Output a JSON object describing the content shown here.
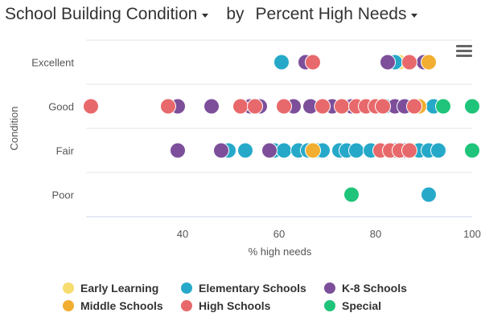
{
  "header": {
    "y_selector": "School Building Condition",
    "by_label": "by",
    "x_selector": "Percent High Needs"
  },
  "legend": [
    {
      "name": "Early Learning",
      "color": "#f7dc6f"
    },
    {
      "name": "Elementary Schools",
      "color": "#26a9c9"
    },
    {
      "name": "K-8 Schools",
      "color": "#7d4f9b"
    },
    {
      "name": "Middle Schools",
      "color": "#f2ae30"
    },
    {
      "name": "High Schools",
      "color": "#e8696b"
    },
    {
      "name": "Special",
      "color": "#1fc47a"
    }
  ],
  "chart_data": {
    "type": "scatter",
    "title": "",
    "xlabel": "% high needs",
    "ylabel": "Condition",
    "xlim": [
      20,
      100
    ],
    "x_ticks": [
      40,
      60,
      80,
      100
    ],
    "categories": [
      "Excellent",
      "Good",
      "Fair",
      "Poor"
    ],
    "series": [
      {
        "name": "Early Learning",
        "color": "#f7dc6f",
        "points": [
          {
            "x": 85,
            "y": "Excellent"
          },
          {
            "x": 88,
            "y": "Fair"
          }
        ]
      },
      {
        "name": "Elementary Schools",
        "color": "#26a9c9",
        "points": [
          {
            "x": 60.5,
            "y": "Excellent"
          },
          {
            "x": 84,
            "y": "Excellent"
          },
          {
            "x": 82,
            "y": "Good"
          },
          {
            "x": 92,
            "y": "Good"
          },
          {
            "x": 49.5,
            "y": "Fair"
          },
          {
            "x": 53,
            "y": "Fair"
          },
          {
            "x": 59,
            "y": "Fair"
          },
          {
            "x": 61,
            "y": "Fair"
          },
          {
            "x": 64,
            "y": "Fair"
          },
          {
            "x": 66,
            "y": "Fair"
          },
          {
            "x": 68,
            "y": "Fair"
          },
          {
            "x": 69,
            "y": "Fair"
          },
          {
            "x": 72.5,
            "y": "Fair"
          },
          {
            "x": 74,
            "y": "Fair"
          },
          {
            "x": 76,
            "y": "Fair"
          },
          {
            "x": 79,
            "y": "Fair"
          },
          {
            "x": 89,
            "y": "Fair"
          },
          {
            "x": 91,
            "y": "Fair"
          },
          {
            "x": 93,
            "y": "Fair"
          },
          {
            "x": 91,
            "y": "Poor"
          }
        ]
      },
      {
        "name": "K-8 Schools",
        "color": "#7d4f9b",
        "points": [
          {
            "x": 65.5,
            "y": "Excellent"
          },
          {
            "x": 82.5,
            "y": "Excellent"
          },
          {
            "x": 90,
            "y": "Excellent"
          },
          {
            "x": 39,
            "y": "Good"
          },
          {
            "x": 46,
            "y": "Good"
          },
          {
            "x": 54,
            "y": "Good"
          },
          {
            "x": 56,
            "y": "Good"
          },
          {
            "x": 63,
            "y": "Good"
          },
          {
            "x": 66.5,
            "y": "Good"
          },
          {
            "x": 71,
            "y": "Good"
          },
          {
            "x": 75,
            "y": "Good"
          },
          {
            "x": 84,
            "y": "Good"
          },
          {
            "x": 86,
            "y": "Good"
          },
          {
            "x": 39,
            "y": "Fair"
          },
          {
            "x": 48,
            "y": "Fair"
          },
          {
            "x": 58,
            "y": "Fair"
          },
          {
            "x": 84,
            "y": "Fair"
          },
          {
            "x": 86,
            "y": "Fair"
          }
        ]
      },
      {
        "name": "Middle Schools",
        "color": "#f2ae30",
        "points": [
          {
            "x": 91,
            "y": "Excellent"
          },
          {
            "x": 89,
            "y": "Good"
          },
          {
            "x": 67,
            "y": "Fair"
          }
        ]
      },
      {
        "name": "High Schools",
        "color": "#e8696b",
        "points": [
          {
            "x": 67,
            "y": "Excellent"
          },
          {
            "x": 87,
            "y": "Excellent"
          },
          {
            "x": 21,
            "y": "Good"
          },
          {
            "x": 37,
            "y": "Good"
          },
          {
            "x": 52,
            "y": "Good"
          },
          {
            "x": 55,
            "y": "Good"
          },
          {
            "x": 61,
            "y": "Good"
          },
          {
            "x": 69,
            "y": "Good"
          },
          {
            "x": 73,
            "y": "Good"
          },
          {
            "x": 76,
            "y": "Good"
          },
          {
            "x": 78,
            "y": "Good"
          },
          {
            "x": 80,
            "y": "Good"
          },
          {
            "x": 81.5,
            "y": "Good"
          },
          {
            "x": 88,
            "y": "Good"
          },
          {
            "x": 81,
            "y": "Fair"
          },
          {
            "x": 83,
            "y": "Fair"
          },
          {
            "x": 85,
            "y": "Fair"
          },
          {
            "x": 87,
            "y": "Fair"
          }
        ]
      },
      {
        "name": "Special",
        "color": "#1fc47a",
        "points": [
          {
            "x": 94,
            "y": "Good"
          },
          {
            "x": 100,
            "y": "Good"
          },
          {
            "x": 100,
            "y": "Fair"
          },
          {
            "x": 75,
            "y": "Poor"
          }
        ]
      }
    ],
    "grid": true,
    "legend_position": "bottom"
  }
}
